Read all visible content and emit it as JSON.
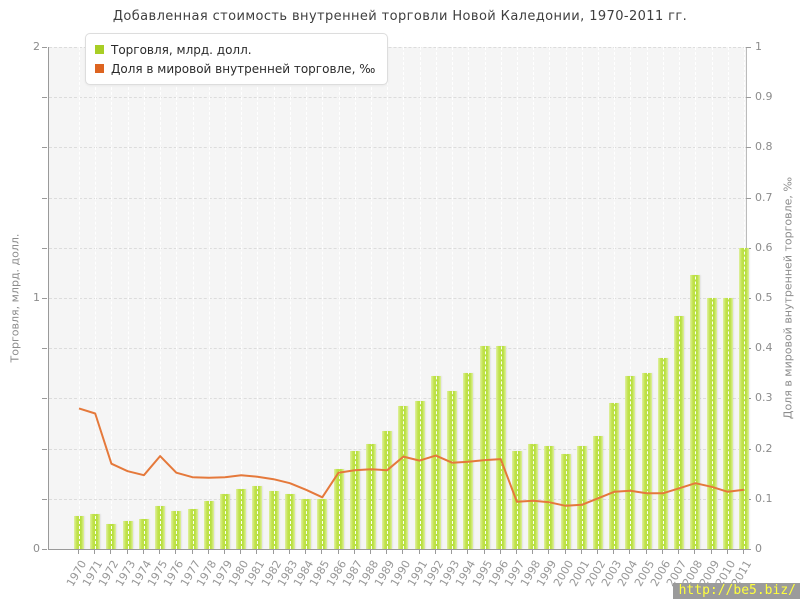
{
  "title": "Добавленная стоимость внутренней торговли Новой Каледонии, 1970-2011 гг.",
  "watermark": "http://be5.biz/",
  "colors": {
    "bar": "#bfe24b",
    "line": "#e5793b",
    "legend_bar_swatch": "#a8ce25",
    "legend_line_swatch": "#dd6420",
    "plot_bg": "#f5f5f5",
    "grid": "#dcdcdc",
    "axis": "#9a9a9a",
    "watermark_bg": "#9b9b9b",
    "watermark_text": "#ffff3c"
  },
  "chart_data": {
    "type": "bar",
    "title": "Добавленная стоимость внутренней торговли Новой Каледонии, 1970-2011 гг.",
    "categories": [
      "1970",
      "1971",
      "1972",
      "1973",
      "1974",
      "1975",
      "1976",
      "1977",
      "1978",
      "1979",
      "1980",
      "1981",
      "1982",
      "1983",
      "1984",
      "1985",
      "1986",
      "1987",
      "1988",
      "1989",
      "1990",
      "1991",
      "1992",
      "1993",
      "1994",
      "1995",
      "1996",
      "1997",
      "1998",
      "1999",
      "2000",
      "2001",
      "2002",
      "2003",
      "2004",
      "2005",
      "2006",
      "2007",
      "2008",
      "2009",
      "2010",
      "2011"
    ],
    "series": [
      {
        "name": "Торговля, млрд. долл.",
        "type": "bar",
        "axis": "left",
        "values": [
          0.13,
          0.14,
          0.1,
          0.11,
          0.12,
          0.17,
          0.15,
          0.16,
          0.19,
          0.22,
          0.24,
          0.25,
          0.23,
          0.22,
          0.2,
          0.2,
          0.32,
          0.39,
          0.42,
          0.47,
          0.57,
          0.59,
          0.69,
          0.63,
          0.7,
          0.81,
          0.81,
          0.39,
          0.42,
          0.41,
          0.38,
          0.41,
          0.45,
          0.58,
          0.69,
          0.7,
          0.76,
          0.93,
          1.09,
          1.0,
          1.0,
          1.2
        ]
      },
      {
        "name": "Доля в мировой внутренней торговле, ‰",
        "type": "line",
        "axis": "right",
        "values": [
          0.28,
          0.27,
          0.17,
          0.155,
          0.147,
          0.185,
          0.152,
          0.143,
          0.142,
          0.143,
          0.147,
          0.144,
          0.139,
          0.131,
          0.118,
          0.103,
          0.152,
          0.157,
          0.159,
          0.157,
          0.184,
          0.176,
          0.186,
          0.172,
          0.174,
          0.177,
          0.179,
          0.094,
          0.096,
          0.093,
          0.086,
          0.088,
          0.101,
          0.114,
          0.116,
          0.111,
          0.111,
          0.121,
          0.131,
          0.124,
          0.114,
          0.118
        ]
      }
    ],
    "left_axis": {
      "label": "Торговля, млрд. долл.",
      "min": 0,
      "max": 2,
      "tick_labels": [
        "0",
        "1",
        "2"
      ]
    },
    "right_axis": {
      "label": "Доля в мировой внутренней торговле, ‰",
      "min": 0,
      "max": 1,
      "tick_step": 0.1
    },
    "grid": true,
    "legend_position": "top-left"
  }
}
